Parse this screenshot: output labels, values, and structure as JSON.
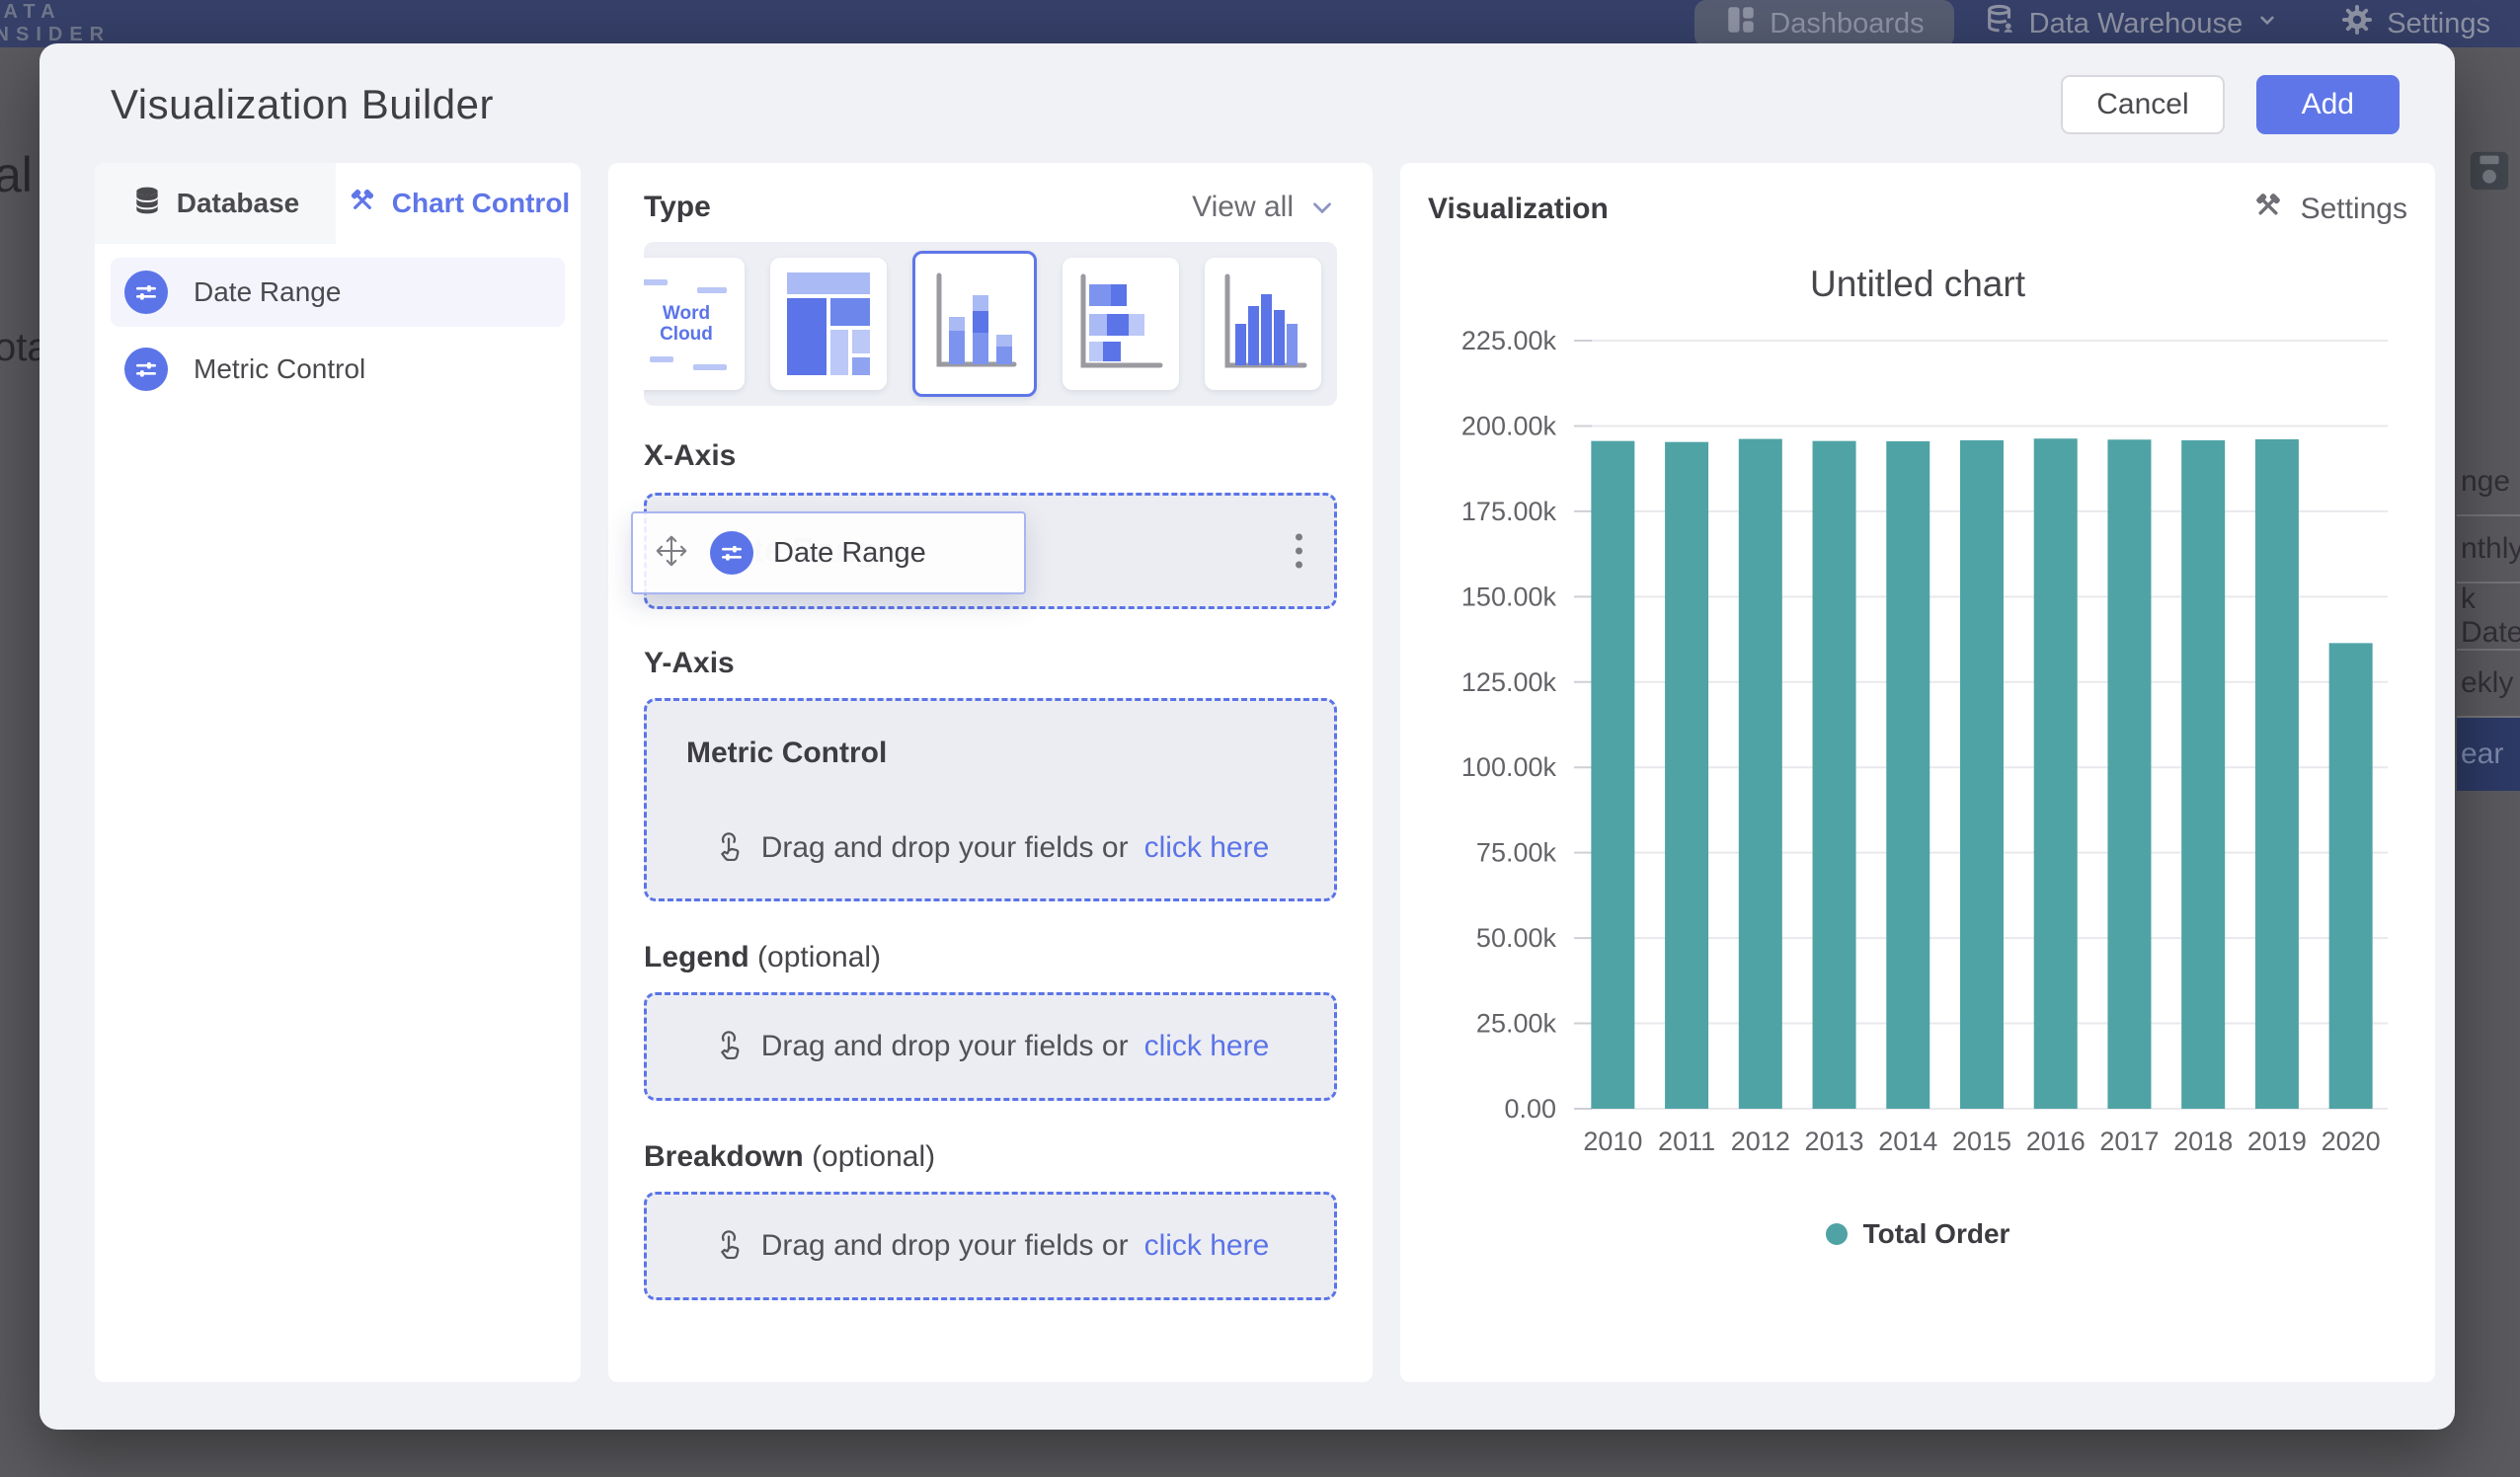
{
  "nav": {
    "logo_line1": "DATA",
    "logo_line2": "INSIDER",
    "dashboards": "Dashboards",
    "data_warehouse": "Data Warehouse",
    "settings": "Settings"
  },
  "background": {
    "left_fragments": {
      "f1": "al",
      "f2": "ota"
    },
    "right_rows": [
      {
        "label": "nge"
      },
      {
        "label": "nthly"
      },
      {
        "label": "k Date"
      },
      {
        "label": "ekly"
      },
      {
        "label": "ear"
      }
    ]
  },
  "modal": {
    "title": "Visualization Builder",
    "cancel_label": "Cancel",
    "add_label": "Add"
  },
  "left_panel": {
    "tabs": [
      {
        "label": "Database"
      },
      {
        "label": "Chart Control"
      }
    ],
    "fields": [
      {
        "label": "Date Range"
      },
      {
        "label": "Metric Control"
      }
    ]
  },
  "builder": {
    "type_label": "Type",
    "view_all_label": "View all",
    "thumbnails": [
      {
        "name": "word-cloud",
        "word1": "Word",
        "word2": "Cloud"
      },
      {
        "name": "treemap"
      },
      {
        "name": "stacked-column",
        "selected": true
      },
      {
        "name": "stacked-bar"
      },
      {
        "name": "column-chart"
      }
    ],
    "x_axis": {
      "label": "X-Axis",
      "chip_label": "Date Range",
      "ghost_label": "Date Range"
    },
    "y_axis": {
      "label": "Y-Axis",
      "zone_title": "Metric Control",
      "hint_text": "Drag and drop your fields or",
      "hint_link": "click here"
    },
    "legend": {
      "label": "Legend",
      "optional": "(optional)",
      "hint_text": "Drag and drop your fields or",
      "hint_link": "click here"
    },
    "breakdown": {
      "label": "Breakdown",
      "optional": "(optional)",
      "hint_text": "Drag and drop your fields or",
      "hint_link": "click here"
    }
  },
  "viz": {
    "header": "Visualization",
    "settings_label": "Settings"
  },
  "chart_data": {
    "type": "bar",
    "title": "Untitled chart",
    "categories": [
      "2010",
      "2011",
      "2012",
      "2013",
      "2014",
      "2015",
      "2016",
      "2017",
      "2018",
      "2019",
      "2020"
    ],
    "series": [
      {
        "name": "Total Order",
        "values": [
          195600,
          195300,
          196200,
          195600,
          195500,
          195800,
          196300,
          196000,
          195800,
          196100,
          136400
        ]
      }
    ],
    "ylim": [
      0,
      225000
    ],
    "y_ticks": {
      "values": [
        0,
        25000,
        50000,
        75000,
        100000,
        125000,
        150000,
        175000,
        200000,
        225000
      ],
      "labels": [
        "0.00",
        "25.00k",
        "50.00k",
        "75.00k",
        "100.00k",
        "125.00k",
        "150.00k",
        "175.00k",
        "200.00k",
        "225.00k"
      ]
    },
    "bar_color": "#4FA3A5",
    "grid": "horizontal",
    "legend_position": "bottom",
    "xlabel": "",
    "ylabel": ""
  }
}
